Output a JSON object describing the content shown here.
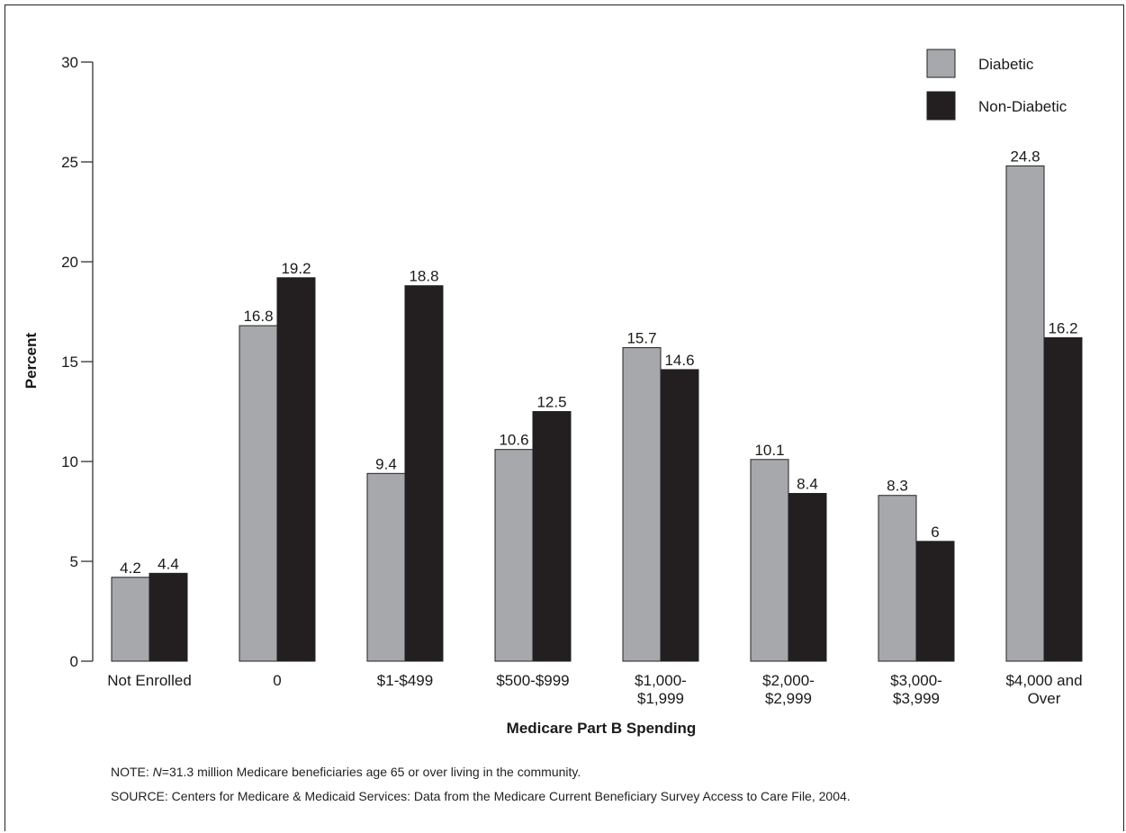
{
  "chart_data": {
    "type": "bar",
    "title": "",
    "xlabel": "Medicare Part B Spending",
    "ylabel": "Percent",
    "ylim": [
      0,
      30
    ],
    "yticks": [
      0,
      5,
      10,
      15,
      20,
      25,
      30
    ],
    "grid": false,
    "legend_position": "top-right",
    "categories": [
      [
        "Not Enrolled"
      ],
      [
        "0"
      ],
      [
        "$1-$499"
      ],
      [
        "$500-$999"
      ],
      [
        "$1,000-",
        "$1,999"
      ],
      [
        "$2,000-",
        "$2,999"
      ],
      [
        "$3,000-",
        "$3,999"
      ],
      [
        "$4,000 and",
        "Over"
      ]
    ],
    "series": [
      {
        "name": "Diabetic",
        "color": "#a7a8ab",
        "values": [
          4.2,
          16.8,
          9.4,
          10.6,
          15.7,
          10.1,
          8.3,
          24.8
        ]
      },
      {
        "name": "Non-Diabetic",
        "color": "#231f20",
        "values": [
          4.4,
          19.2,
          18.8,
          12.5,
          14.6,
          8.4,
          6,
          16.2
        ]
      }
    ]
  },
  "notes": {
    "note_prefix": "NOTE: ",
    "note_n": "N",
    "note_text": "=31.3 million Medicare beneficiaries age 65 or over living in the community.",
    "source": "SOURCE: Centers for Medicare & Medicaid Services: Data from the Medicare Current Beneficiary Survey Access to Care File, 2004."
  }
}
